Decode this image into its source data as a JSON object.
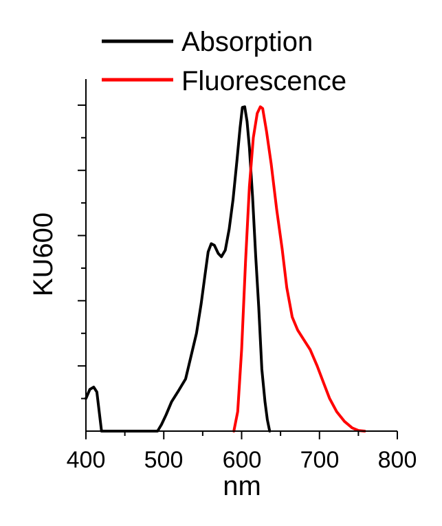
{
  "chart_data": {
    "type": "line",
    "xlabel": "nm",
    "ylabel": "KU600",
    "xlim": [
      400,
      800
    ],
    "ylim": [
      0,
      1.08
    ],
    "x_ticks": [
      400,
      500,
      600,
      700,
      800
    ],
    "x_tick_labels": [
      "400",
      "500",
      "600",
      "700",
      "800"
    ],
    "y_tick_labels_shown": false,
    "grid": false,
    "legend_position": "top",
    "series": [
      {
        "name": "Absorption",
        "color": "#000000",
        "points": [
          [
            400,
            0.1
          ],
          [
            405,
            0.128
          ],
          [
            410,
            0.135
          ],
          [
            414,
            0.12
          ],
          [
            417,
            0.06
          ],
          [
            420,
            0.0
          ],
          [
            492,
            0.0
          ],
          [
            497,
            0.02
          ],
          [
            503,
            0.05
          ],
          [
            510,
            0.09
          ],
          [
            518,
            0.12
          ],
          [
            528,
            0.16
          ],
          [
            535,
            0.23
          ],
          [
            542,
            0.3
          ],
          [
            548,
            0.39
          ],
          [
            553,
            0.48
          ],
          [
            557,
            0.55
          ],
          [
            561,
            0.575
          ],
          [
            565,
            0.57
          ],
          [
            570,
            0.545
          ],
          [
            574,
            0.535
          ],
          [
            579,
            0.555
          ],
          [
            584,
            0.62
          ],
          [
            589,
            0.71
          ],
          [
            594,
            0.83
          ],
          [
            598,
            0.93
          ],
          [
            601,
            0.993
          ],
          [
            604,
            0.995
          ],
          [
            607,
            0.95
          ],
          [
            610,
            0.87
          ],
          [
            614,
            0.72
          ],
          [
            618,
            0.54
          ],
          [
            622,
            0.38
          ],
          [
            626,
            0.19
          ],
          [
            630,
            0.09
          ],
          [
            633,
            0.035
          ],
          [
            636,
            0.0
          ]
        ]
      },
      {
        "name": "Fluorescence",
        "color": "#ff0000",
        "points": [
          [
            590,
            0.0
          ],
          [
            595,
            0.06
          ],
          [
            600,
            0.25
          ],
          [
            605,
            0.52
          ],
          [
            610,
            0.75
          ],
          [
            615,
            0.9
          ],
          [
            620,
            0.975
          ],
          [
            624,
            0.995
          ],
          [
            627,
            0.99
          ],
          [
            632,
            0.92
          ],
          [
            638,
            0.82
          ],
          [
            645,
            0.68
          ],
          [
            652,
            0.56
          ],
          [
            658,
            0.44
          ],
          [
            665,
            0.35
          ],
          [
            672,
            0.31
          ],
          [
            680,
            0.28
          ],
          [
            688,
            0.25
          ],
          [
            697,
            0.2
          ],
          [
            705,
            0.15
          ],
          [
            713,
            0.1
          ],
          [
            722,
            0.06
          ],
          [
            732,
            0.03
          ],
          [
            742,
            0.01
          ],
          [
            750,
            0.002
          ],
          [
            758,
            0.0
          ]
        ]
      }
    ]
  }
}
